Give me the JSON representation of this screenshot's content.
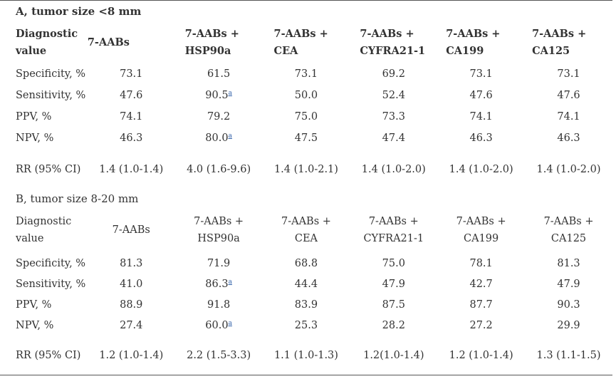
{
  "sectionA": {
    "title": "A, tumor size <8 mm",
    "header": [
      "Diagnostic value",
      "7-AABs",
      "7-AABs + HSP90a",
      "7-AABs + CEA",
      "7-AABs + CYFRA21-1",
      "7-AABs + CA199",
      "7-AABs + CA125"
    ],
    "rows": [
      {
        "label": "Specificity, %",
        "values": [
          "73.1",
          "61.5",
          "73.1",
          "69.2",
          "73.1",
          "73.1"
        ]
      },
      {
        "label": "Sensitivity, %",
        "values": [
          "47.6",
          "90.5",
          "50.0",
          "52.4",
          "47.6",
          "47.6"
        ]
      },
      {
        "label": "PPV, %",
        "values": [
          "74.1",
          "79.2",
          "75.0",
          "73.3",
          "74.1",
          "74.1"
        ]
      },
      {
        "label": "NPV, %",
        "values": [
          "46.3",
          "80.0",
          "47.5",
          "47.4",
          "46.3",
          "46.3"
        ]
      },
      {
        "label": "RR (95% CI)",
        "values": [
          "1.4 (1.0-1.4)",
          "4.0 (1.6-9.6)",
          "1.4 (1.0-2.1)",
          "1.4 (1.0-2.0)",
          "1.4 (1.0-2.0)",
          "1.4 (1.0-2.0)"
        ]
      }
    ]
  },
  "sectionB": {
    "title": "B, tumor size 8-20 mm",
    "header": [
      "Diagnostic value",
      "7-AABs",
      "7-AABs + HSP90a",
      "7-AABs + CEA",
      "7-AABs + CYFRA21-1",
      "7-AABs + CA199",
      "7-AABs + CA125"
    ],
    "rows": [
      {
        "label": "Specificity, %",
        "values": [
          "81.3",
          "71.9",
          "68.8",
          "75.0",
          "78.1",
          "81.3"
        ]
      },
      {
        "label": "Sensitivity, %",
        "values": [
          "41.0",
          "86.3",
          "44.4",
          "47.9",
          "42.7",
          "47.9"
        ]
      },
      {
        "label": "PPV, %",
        "values": [
          "88.9",
          "91.8",
          "83.9",
          "87.5",
          "87.7",
          "90.3"
        ]
      },
      {
        "label": "NPV, %",
        "values": [
          "27.4",
          "60.0",
          "25.3",
          "28.2",
          "27.2",
          "29.9"
        ]
      },
      {
        "label": "RR (95% CI)",
        "values": [
          "1.2 (1.0-1.4)",
          "2.2 (1.5-3.3)",
          "1.1 (1.0-1.3)",
          "1.2(1.0-1.4)",
          "1.2 (1.0-1.4)",
          "1.3 (1.1-1.5)"
        ]
      }
    ]
  },
  "footnote_marker": "a"
}
